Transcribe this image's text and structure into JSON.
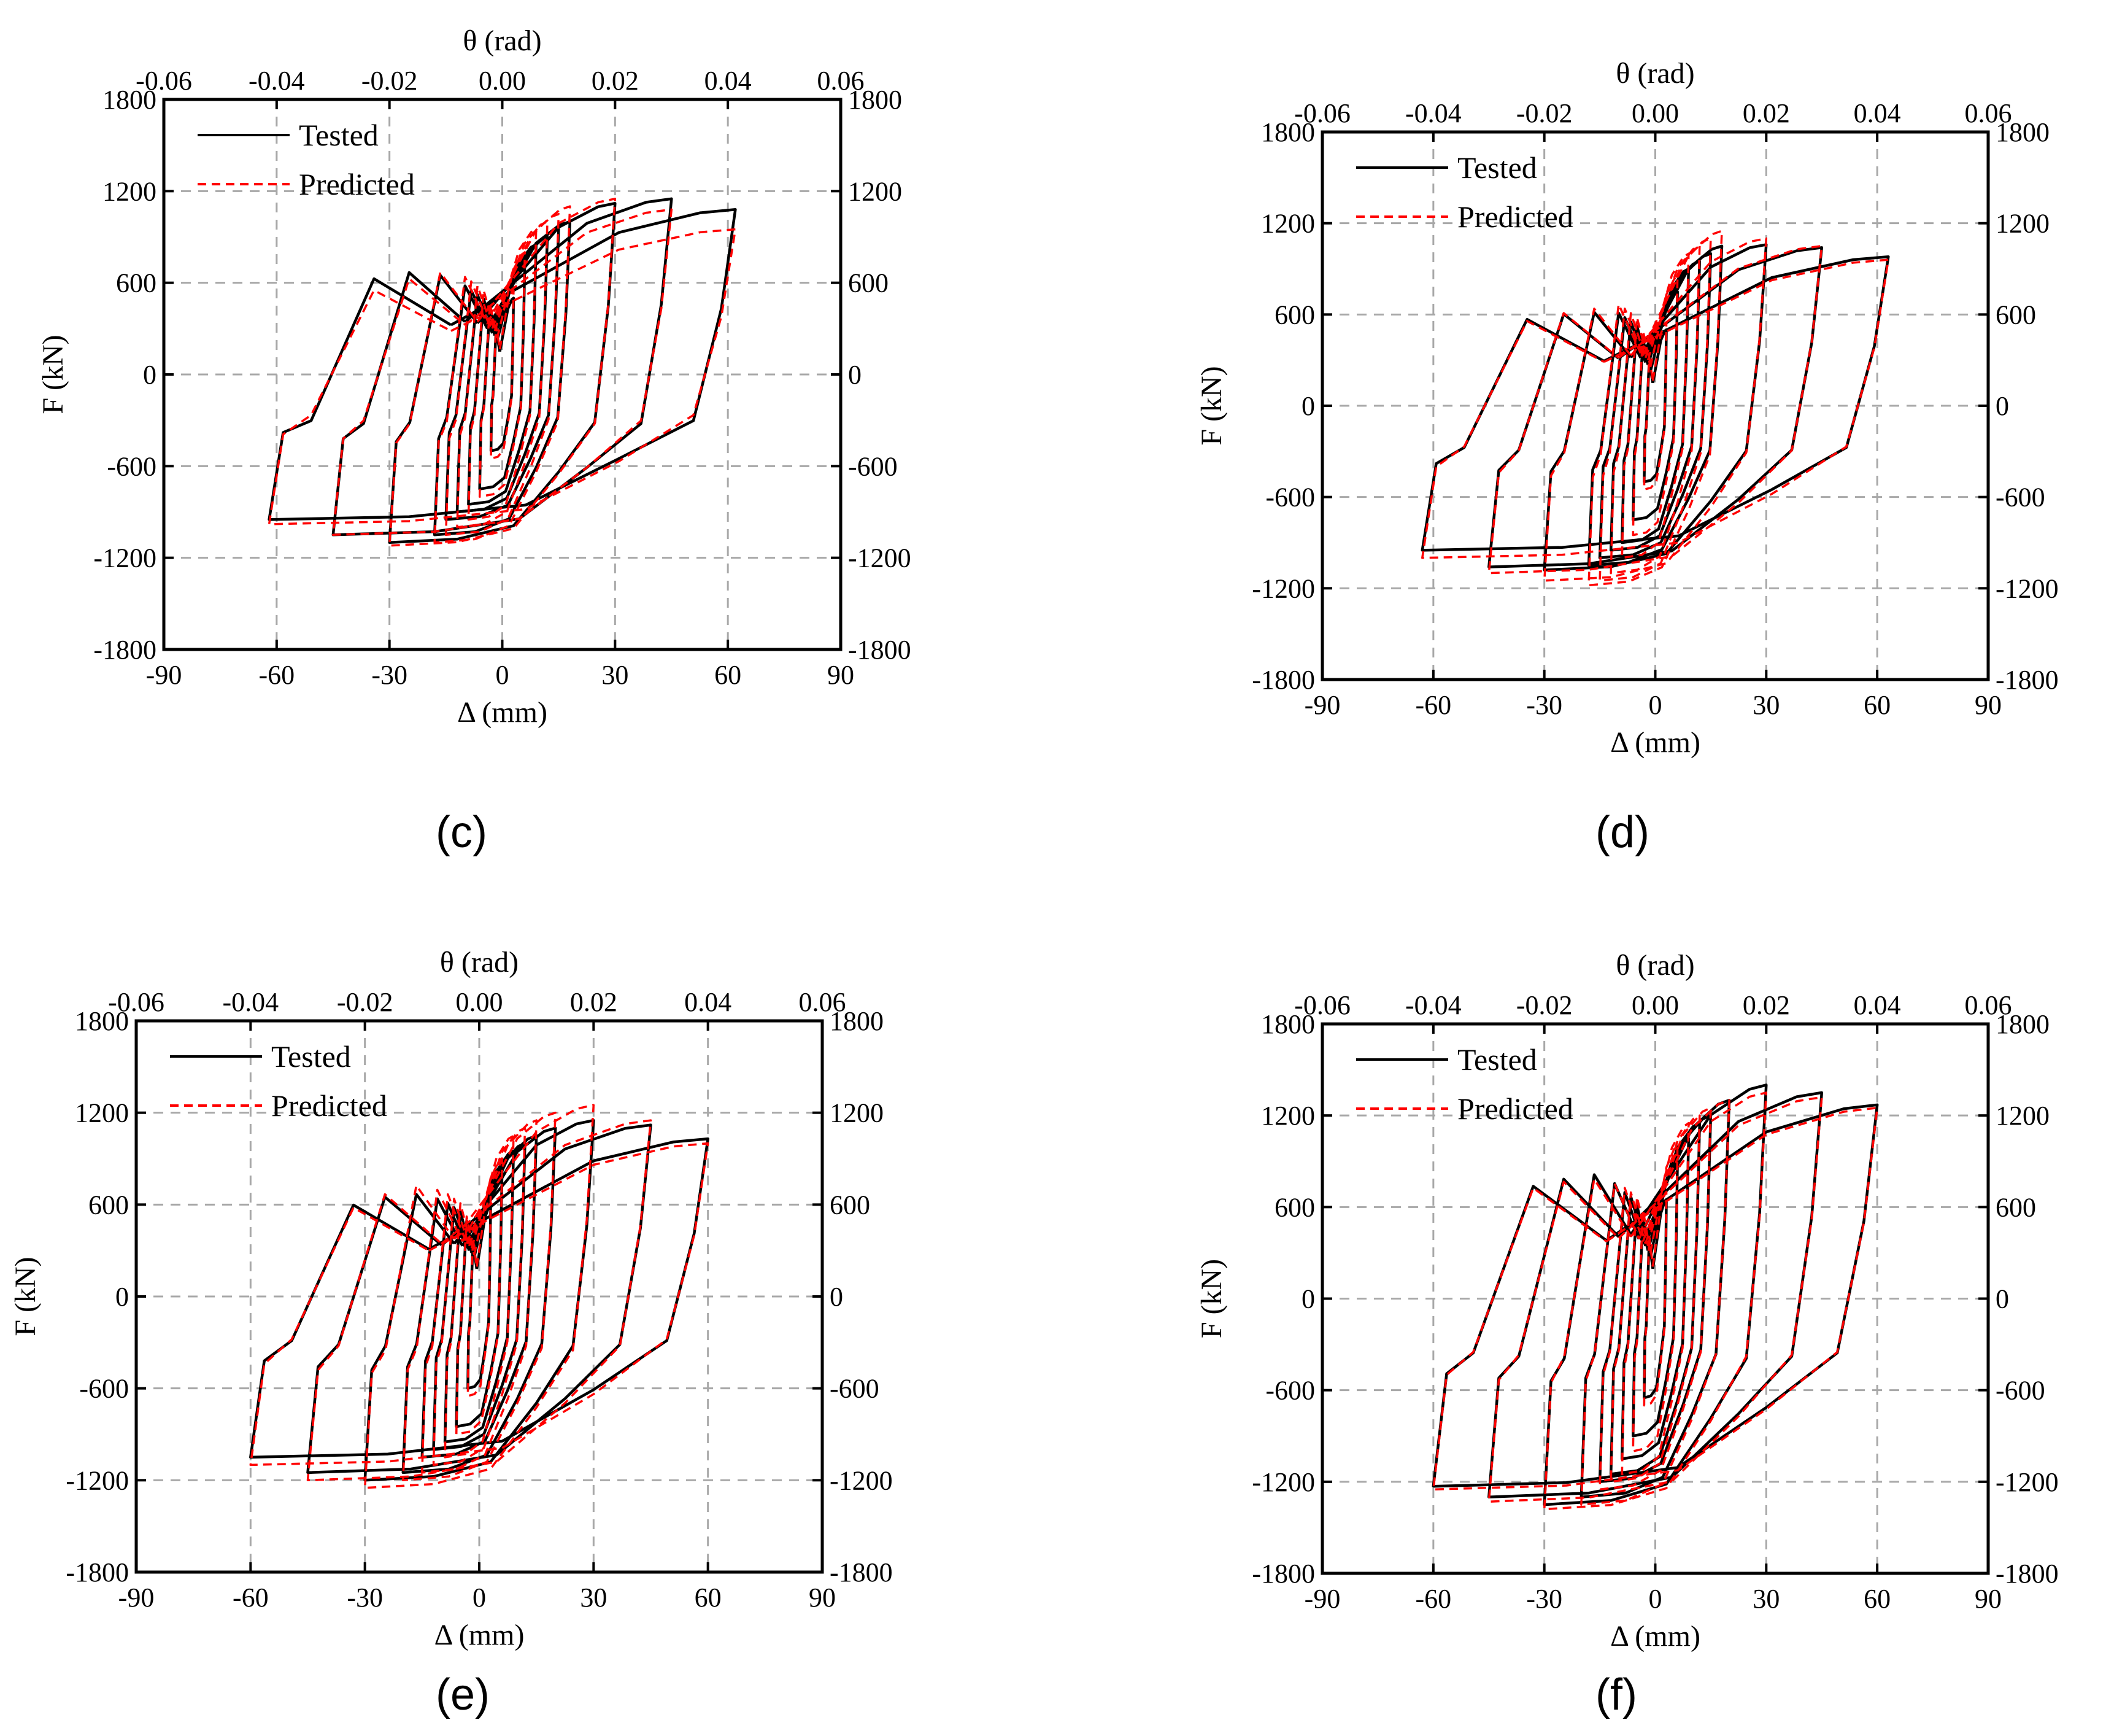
{
  "figure": {
    "panels_order": [
      "c",
      "d",
      "e",
      "f"
    ]
  },
  "chart_data": [
    {
      "id": "c",
      "type": "line",
      "panel_label": "(c)",
      "xlabel": "Δ (mm)",
      "ylabel": "F (kN)",
      "top_xlabel": "θ (rad)",
      "xlim": [
        -90,
        90
      ],
      "ylim": [
        -1800,
        1800
      ],
      "top_xlim": [
        -0.06,
        0.06
      ],
      "x_ticks": [
        "-90",
        "-60",
        "-30",
        "0",
        "30",
        "60",
        "90"
      ],
      "y_ticks": [
        "-1800",
        "-1200",
        "-600",
        "0",
        "600",
        "1200",
        "1800"
      ],
      "top_ticks": [
        "-0.06",
        "-0.04",
        "-0.02",
        "0.00",
        "0.02",
        "0.04",
        "0.06"
      ],
      "grid": true,
      "legend": {
        "position": "top-left",
        "entries": [
          "Tested",
          "Predicted"
        ]
      },
      "series": [
        {
          "name": "Tested",
          "style": "solid",
          "color": "#000000",
          "amplitudes": [
            3,
            6,
            9,
            12,
            15,
            18,
            30,
            45,
            62
          ],
          "pos_peaks": [
            500,
            750,
            850,
            900,
            950,
            1000,
            1120,
            1150,
            1080
          ],
          "neg_peaks": [
            -500,
            -750,
            -850,
            -900,
            -950,
            -1050,
            -1100,
            -1050,
            -950
          ]
        },
        {
          "name": "Predicted",
          "style": "dashed",
          "color": "#ff0000",
          "amplitudes": [
            3,
            6,
            9,
            12,
            15,
            18,
            30,
            45,
            62
          ],
          "pos_peaks": [
            550,
            800,
            950,
            1000,
            1050,
            1100,
            1150,
            1080,
            950
          ],
          "neg_peaks": [
            -550,
            -800,
            -950,
            -1000,
            -1050,
            -1100,
            -1120,
            -1050,
            -980
          ]
        }
      ]
    },
    {
      "id": "d",
      "type": "line",
      "panel_label": "(d)",
      "xlabel": "Δ (mm)",
      "ylabel": "F (kN)",
      "top_xlabel": "θ (rad)",
      "xlim": [
        -90,
        90
      ],
      "ylim": [
        -1800,
        1800
      ],
      "top_xlim": [
        -0.06,
        0.06
      ],
      "x_ticks": [
        "-90",
        "-60",
        "-30",
        "0",
        "30",
        "60",
        "90"
      ],
      "y_ticks": [
        "-1800",
        "-1200",
        "-600",
        "0",
        "600",
        "1200",
        "1800"
      ],
      "top_ticks": [
        "-0.06",
        "-0.04",
        "-0.02",
        "0.00",
        "0.02",
        "0.04",
        "0.06"
      ],
      "grid": true,
      "legend": {
        "position": "top-left",
        "entries": [
          "Tested",
          "Predicted"
        ]
      },
      "series": [
        {
          "name": "Tested",
          "style": "solid",
          "color": "#000000",
          "amplitudes": [
            3,
            6,
            9,
            12,
            15,
            18,
            30,
            45,
            63
          ],
          "pos_peaks": [
            500,
            750,
            900,
            950,
            1000,
            1050,
            1060,
            1040,
            980
          ],
          "neg_peaks": [
            -500,
            -750,
            -900,
            -950,
            -1000,
            -1050,
            -1080,
            -1060,
            -950
          ]
        },
        {
          "name": "Predicted",
          "style": "dashed",
          "color": "#ff0000",
          "amplitudes": [
            3,
            6,
            9,
            12,
            15,
            18,
            30,
            45,
            63
          ],
          "pos_peaks": [
            550,
            850,
            1000,
            1050,
            1100,
            1150,
            1100,
            1050,
            960
          ],
          "neg_peaks": [
            -550,
            -850,
            -1000,
            -1100,
            -1150,
            -1180,
            -1150,
            -1100,
            -1000
          ]
        }
      ]
    },
    {
      "id": "e",
      "type": "line",
      "panel_label": "(e)",
      "xlabel": "Δ (mm)",
      "ylabel": "F (kN)",
      "top_xlabel": "θ (rad)",
      "xlim": [
        -90,
        90
      ],
      "ylim": [
        -1800,
        1800
      ],
      "top_xlim": [
        -0.06,
        0.06
      ],
      "x_ticks": [
        "-90",
        "-60",
        "-30",
        "0",
        "30",
        "60",
        "90"
      ],
      "y_ticks": [
        "-1800",
        "-1200",
        "-600",
        "0",
        "600",
        "1200",
        "1800"
      ],
      "top_ticks": [
        "-0.06",
        "-0.04",
        "-0.02",
        "0.00",
        "0.02",
        "0.04",
        "0.06"
      ],
      "grid": true,
      "legend": {
        "position": "top-left",
        "entries": [
          "Tested",
          "Predicted"
        ]
      },
      "series": [
        {
          "name": "Tested",
          "style": "solid",
          "color": "#000000",
          "amplitudes": [
            3,
            6,
            9,
            12,
            15,
            20,
            30,
            45,
            60
          ],
          "pos_peaks": [
            600,
            850,
            950,
            1000,
            1050,
            1100,
            1150,
            1120,
            1030
          ],
          "neg_peaks": [
            -600,
            -850,
            -950,
            -1000,
            -1050,
            -1150,
            -1200,
            -1150,
            -1050
          ]
        },
        {
          "name": "Predicted",
          "style": "dashed",
          "color": "#ff0000",
          "amplitudes": [
            3,
            6,
            9,
            12,
            15,
            20,
            30,
            45,
            60
          ],
          "pos_peaks": [
            650,
            900,
            1050,
            1100,
            1150,
            1200,
            1250,
            1150,
            1000
          ],
          "neg_peaks": [
            -650,
            -900,
            -1050,
            -1100,
            -1150,
            -1200,
            -1250,
            -1200,
            -1100
          ]
        }
      ]
    },
    {
      "id": "f",
      "type": "line",
      "panel_label": "(f)",
      "xlabel": "Δ (mm)",
      "ylabel": "F (kN)",
      "top_xlabel": "θ (rad)",
      "xlim": [
        -90,
        90
      ],
      "ylim": [
        -1800,
        1800
      ],
      "top_xlim": [
        -0.06,
        0.06
      ],
      "x_ticks": [
        "-90",
        "-60",
        "-30",
        "0",
        "30",
        "60",
        "90"
      ],
      "y_ticks": [
        "-1800",
        "-1200",
        "-600",
        "0",
        "600",
        "1200",
        "1800"
      ],
      "top_ticks": [
        "-0.06",
        "-0.04",
        "-0.02",
        "0.00",
        "0.02",
        "0.04",
        "0.06"
      ],
      "grid": true,
      "legend": {
        "position": "top-left",
        "entries": [
          "Tested",
          "Predicted"
        ]
      },
      "series": [
        {
          "name": "Tested",
          "style": "solid",
          "color": "#000000",
          "amplitudes": [
            3,
            6,
            9,
            12,
            15,
            20,
            30,
            45,
            60
          ],
          "pos_peaks": [
            650,
            900,
            1050,
            1150,
            1200,
            1300,
            1400,
            1350,
            1270
          ],
          "neg_peaks": [
            -650,
            -900,
            -1050,
            -1150,
            -1200,
            -1300,
            -1350,
            -1300,
            -1230
          ]
        },
        {
          "name": "Predicted",
          "style": "dashed",
          "color": "#ff0000",
          "amplitudes": [
            3,
            6,
            9,
            12,
            15,
            20,
            30,
            45,
            60
          ],
          "pos_peaks": [
            700,
            1000,
            1150,
            1200,
            1250,
            1300,
            1350,
            1320,
            1250
          ],
          "neg_peaks": [
            -700,
            -1000,
            -1150,
            -1200,
            -1250,
            -1350,
            -1380,
            -1330,
            -1250
          ]
        }
      ]
    }
  ]
}
